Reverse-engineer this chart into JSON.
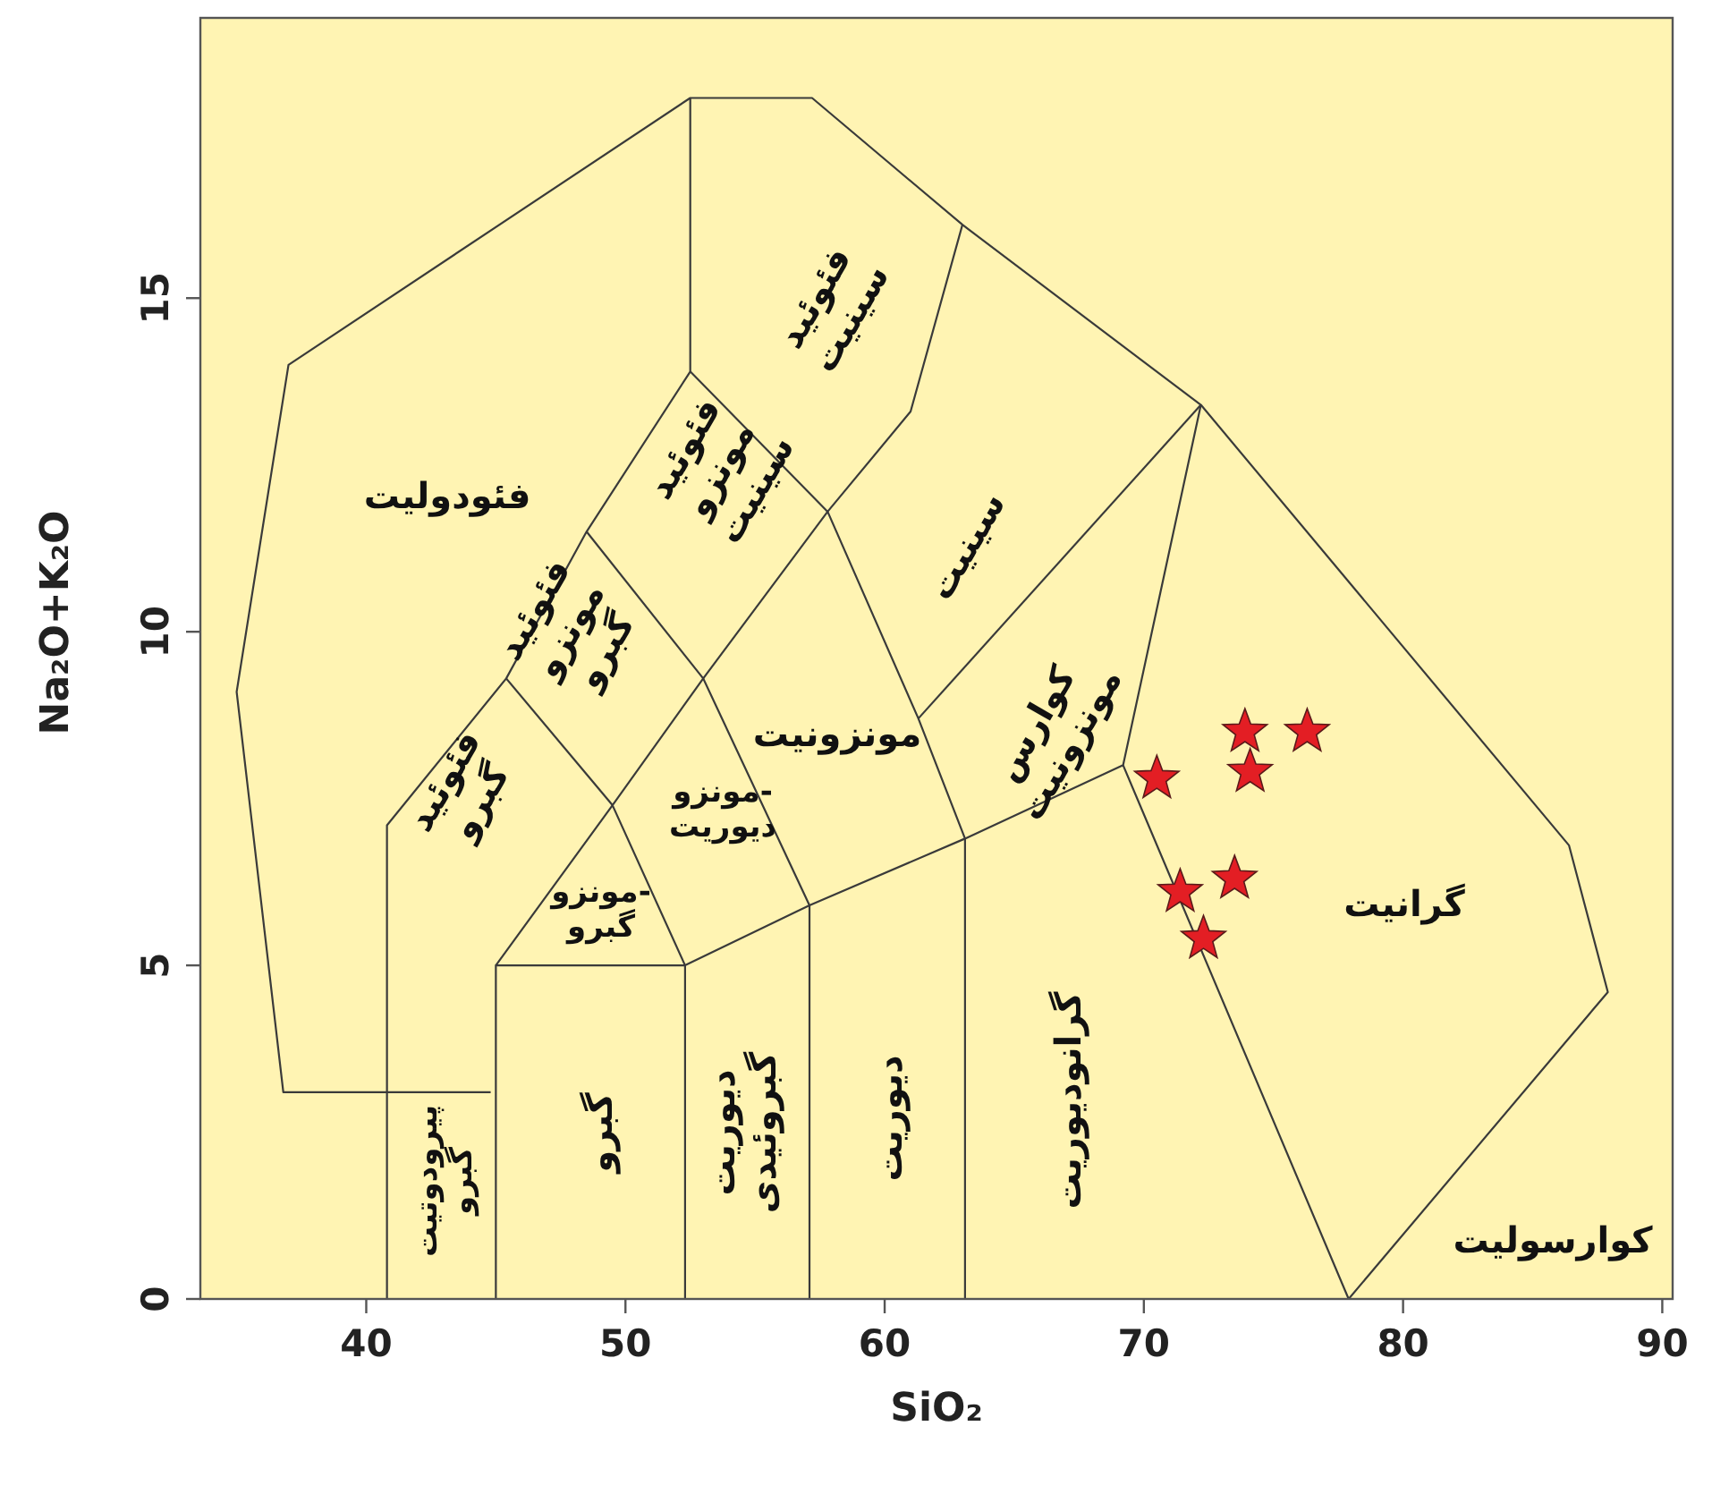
{
  "chart_data": {
    "type": "scatter",
    "xlabel": "SiO₂",
    "ylabel": "Na₂O+K₂O",
    "xlim": [
      33.6,
      90.4
    ],
    "ylim": [
      0,
      19.2
    ],
    "xticks": [
      40,
      50,
      60,
      70,
      80,
      90
    ],
    "yticks": [
      0,
      5,
      10,
      15
    ],
    "grid": false,
    "series": [
      {
        "type": "line",
        "color": "#3a3a3a",
        "x": [
          44.8,
          36.8,
          35.0,
          37.0,
          52.5,
          57.2,
          63.0,
          72.2,
          86.4,
          87.9,
          77.9,
          69.2
        ],
        "values": [
          3.1,
          3.1,
          9.1,
          14.0,
          18.0,
          18.0,
          16.1,
          13.4,
          6.8,
          4.6,
          0,
          8.0
        ]
      },
      {
        "type": "line",
        "color": "#3a3a3a",
        "x": [
          40.8,
          40.8,
          45.4,
          48.5,
          52.5,
          52.5
        ],
        "values": [
          0,
          7.1,
          9.3,
          11.5,
          13.9,
          18.0
        ]
      },
      {
        "type": "line",
        "color": "#3a3a3a",
        "x": [
          45.0,
          45.0,
          52.3,
          52.3
        ],
        "values": [
          0,
          5.0,
          5.0,
          0
        ]
      },
      {
        "type": "line",
        "color": "#3a3a3a",
        "x": [
          45.0,
          49.5,
          52.3
        ],
        "values": [
          5.0,
          7.4,
          5.0
        ]
      },
      {
        "type": "line",
        "color": "#3a3a3a",
        "x": [
          45.4,
          49.5,
          53.0,
          57.8,
          61.0,
          63.0
        ],
        "values": [
          9.3,
          7.4,
          9.3,
          11.8,
          13.3,
          16.1
        ]
      },
      {
        "type": "line",
        "color": "#3a3a3a",
        "x": [
          48.5,
          53.0,
          57.1,
          57.1
        ],
        "values": [
          11.5,
          9.3,
          5.9,
          0
        ]
      },
      {
        "type": "line",
        "color": "#3a3a3a",
        "x": [
          52.5,
          57.8,
          61.3,
          63.1,
          63.1
        ],
        "values": [
          13.9,
          11.8,
          8.7,
          6.9,
          0
        ]
      },
      {
        "type": "line",
        "color": "#3a3a3a",
        "x": [
          52.3,
          57.1,
          63.1,
          69.2,
          72.2
        ],
        "values": [
          5.0,
          5.9,
          6.9,
          8.0,
          13.4
        ]
      },
      {
        "type": "line",
        "color": "#3a3a3a",
        "x": [
          61.3,
          72.2
        ],
        "values": [
          8.7,
          13.4
        ]
      },
      {
        "type": "scatter",
        "marker": "star",
        "color": "#e31e24",
        "x": [
          73.9,
          76.3,
          70.5,
          74.1,
          73.5,
          71.4,
          72.3
        ],
        "values": [
          8.5,
          8.5,
          7.8,
          7.9,
          6.3,
          6.1,
          5.4
        ]
      }
    ],
    "annotations": [
      "فئودولیت",
      "فئوئید\nسینیت",
      "فئوئید\nمونزو\nسینیت",
      "سینیت",
      "فئوئید\nمونزو\nگبرو",
      "مونزونیت",
      "کوارس\nمونزونیت",
      "فئوئید\nگبرو",
      "مونزو-\nدیوریت",
      "مونزو-\nگبرو",
      "گرانیت",
      "پیرودوتیت\nگبرو",
      "گبرو",
      "دیوریت\nگبروئیدی",
      "دیوریت",
      "گرانودیوریت",
      "کوارسولیت"
    ]
  }
}
